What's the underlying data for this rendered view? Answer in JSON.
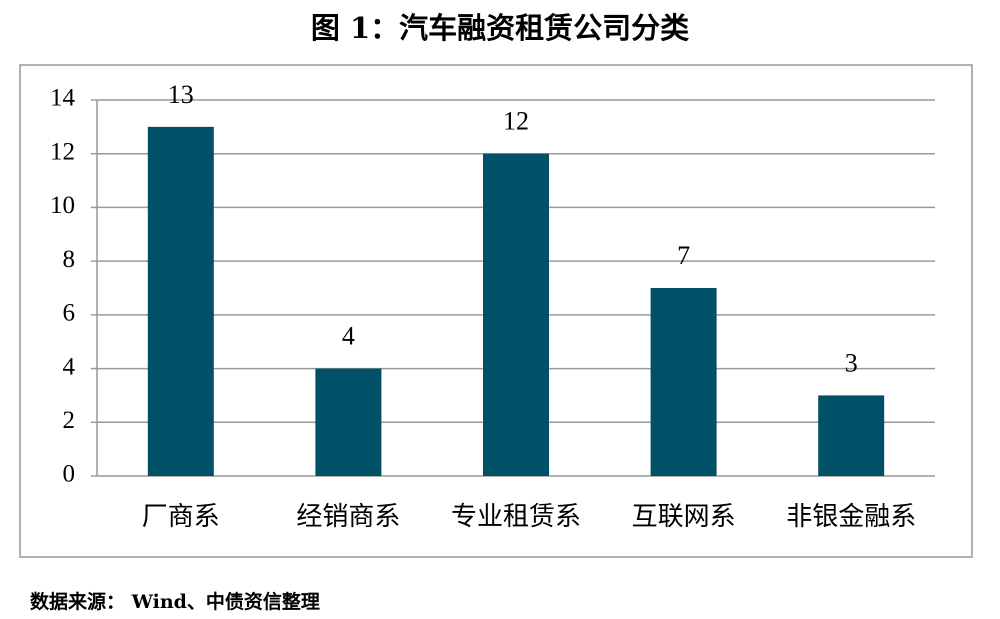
{
  "chart_data": {
    "type": "bar",
    "title": "图 1：汽车融资租赁公司分类",
    "categories": [
      "厂商系",
      "经销商系",
      "专业租赁系",
      "互联网系",
      "非银金融系"
    ],
    "values": [
      13,
      4,
      12,
      7,
      3
    ],
    "color": "#005068",
    "ylim": [
      0,
      14
    ],
    "yticks": [
      0,
      2,
      4,
      6,
      8,
      10,
      12,
      14
    ],
    "grid": true,
    "source": "数据来源： Wind、中债资信整理"
  }
}
